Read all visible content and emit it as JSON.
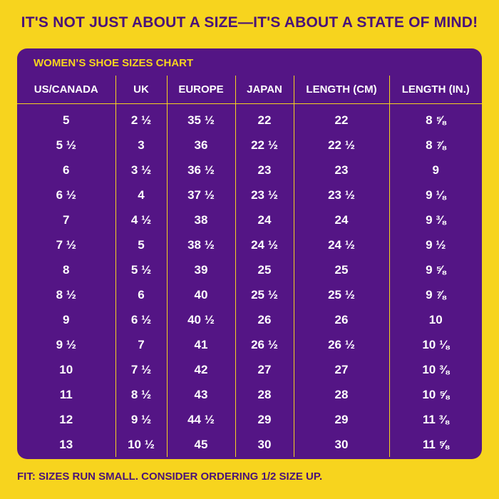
{
  "headline": "IT'S NOT JUST ABOUT A SIZE—IT'S ABOUT A STATE OF MIND!",
  "chart_title": "WOMEN’S SHOE SIZES CHART",
  "colors": {
    "background": "#f7d41e",
    "card": "#541585",
    "accent": "#f7d41e",
    "text_dark": "#4a1278",
    "text_light": "#ffffff"
  },
  "table": {
    "headers": [
      "US/CANADA",
      "UK",
      "EUROPE",
      "JAPAN",
      "LENGTH (CM)",
      "LENGTH (IN.)"
    ],
    "rows": [
      [
        "5",
        "2 ½",
        "35 ½",
        "22",
        "22",
        "8 ⅝"
      ],
      [
        "5 ½",
        "3",
        "36",
        "22 ½",
        "22 ½",
        "8 ⅞"
      ],
      [
        "6",
        "3 ½",
        "36 ½",
        "23",
        "23",
        "9"
      ],
      [
        "6 ½",
        "4",
        "37 ½",
        "23 ½",
        "23 ½",
        "9 ⅛"
      ],
      [
        "7",
        "4 ½",
        "38",
        "24",
        "24",
        "9 ⅜"
      ],
      [
        "7 ½",
        "5",
        "38 ½",
        "24 ½",
        "24 ½",
        "9 ½"
      ],
      [
        "8",
        "5 ½",
        "39",
        "25",
        "25",
        "9 ⅝"
      ],
      [
        "8 ½",
        "6",
        "40",
        "25 ½",
        "25 ½",
        "9 ⅞"
      ],
      [
        "9",
        "6 ½",
        "40 ½",
        "26",
        "26",
        "10"
      ],
      [
        "9 ½",
        "7",
        "41",
        "26 ½",
        "26 ½",
        "10 ⅛"
      ],
      [
        "10",
        "7 ½",
        "42",
        "27",
        "27",
        "10 ⅜"
      ],
      [
        "11",
        "8 ½",
        "43",
        "28",
        "28",
        "10 ⅝"
      ],
      [
        "12",
        "9 ½",
        "44 ½",
        "29",
        "29",
        "11 ⅜"
      ],
      [
        "13",
        "10 ½",
        "45",
        "30",
        "30",
        "11 ⅝"
      ]
    ]
  },
  "footnote": "FIT: SIZES RUN SMALL. CONSIDER ORDERING 1/2 SIZE UP."
}
